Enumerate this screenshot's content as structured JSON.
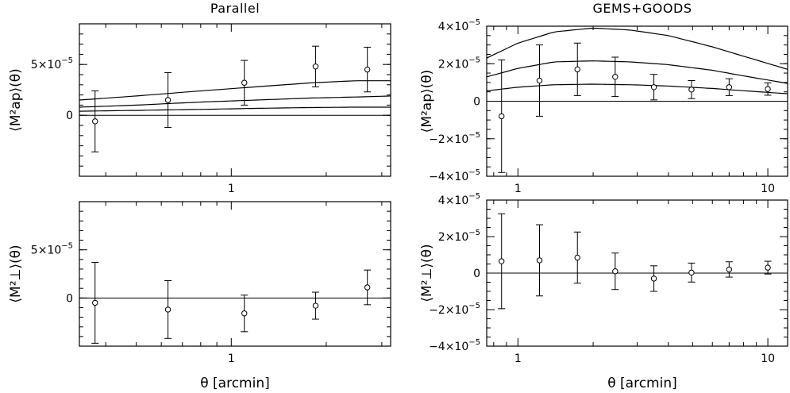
{
  "titles": {
    "left": "Parallel",
    "right": "GEMS+GOODS"
  },
  "xlabel_left": "θ [arcmin]",
  "xlabel_right": "θ [arcmin]",
  "chart_data": [
    {
      "type": "scatter",
      "panel": "parallel-top",
      "title": "Parallel",
      "ylabel": "⟨M²ap⟩(θ)",
      "xlabel": "",
      "xscale": "log",
      "xlim": [
        0.33,
        3.2
      ],
      "ylim": [
        -6e-05,
        9e-05
      ],
      "xticks": [
        {
          "v": 1,
          "label": "1"
        }
      ],
      "yticks": [
        {
          "v": 5e-05,
          "label": "5×10",
          "exp": "−5"
        },
        {
          "v": 0,
          "label": "0"
        }
      ],
      "points": {
        "x": [
          0.37,
          0.63,
          1.1,
          1.85,
          2.7
        ],
        "y": [
          -6e-06,
          1.5e-05,
          3.2e-05,
          4.8e-05,
          4.5e-05
        ],
        "err": [
          3e-05,
          2.7e-05,
          2.2e-05,
          2e-05,
          2.2e-05
        ]
      },
      "curves": [
        {
          "x": [
            0.33,
            0.5,
            0.8,
            1.2,
            1.8,
            2.5,
            3.2
          ],
          "y": [
            1.5e-05,
            1.9e-05,
            2.4e-05,
            2.8e-05,
            3.2e-05,
            3.4e-05,
            3.4e-05
          ]
        },
        {
          "x": [
            0.33,
            0.5,
            0.8,
            1.2,
            1.8,
            2.5,
            3.2
          ],
          "y": [
            8e-06,
            1e-05,
            1.3e-05,
            1.5e-05,
            1.7e-05,
            1.8e-05,
            1.9e-05
          ]
        },
        {
          "x": [
            0.33,
            0.5,
            0.8,
            1.2,
            1.8,
            2.5,
            3.2
          ],
          "y": [
            4e-06,
            4.8e-06,
            5.8e-06,
            6.8e-06,
            7.6e-06,
            8e-06,
            8e-06
          ]
        }
      ]
    },
    {
      "type": "scatter",
      "panel": "parallel-bottom",
      "ylabel": "⟨M²⊥⟩(θ)",
      "xlabel": "θ [arcmin]",
      "xscale": "log",
      "xlim": [
        0.33,
        3.2
      ],
      "ylim": [
        -5e-05,
        0.0001
      ],
      "xticks": [
        {
          "v": 1,
          "label": "1"
        }
      ],
      "yticks": [
        {
          "v": 5e-05,
          "label": "5×10",
          "exp": "−5"
        },
        {
          "v": 0,
          "label": "0"
        }
      ],
      "points": {
        "x": [
          0.37,
          0.63,
          1.1,
          1.85,
          2.7
        ],
        "y": [
          -5e-06,
          -1.2e-05,
          -1.6e-05,
          -8e-06,
          1.1e-05
        ],
        "err": [
          4.2e-05,
          3e-05,
          1.9e-05,
          1.4e-05,
          1.8e-05
        ]
      },
      "curves": []
    },
    {
      "type": "scatter",
      "panel": "gems-top",
      "title": "GEMS+GOODS",
      "ylabel": "⟨M²ap⟩(θ)",
      "xlabel": "",
      "xscale": "log",
      "xlim": [
        0.75,
        12
      ],
      "ylim": [
        -4e-05,
        4e-05
      ],
      "xticks": [
        {
          "v": 1,
          "label": "1"
        },
        {
          "v": 10,
          "label": "10"
        }
      ],
      "yticks": [
        {
          "v": 4e-05,
          "label": "4×10",
          "exp": "−5"
        },
        {
          "v": 2e-05,
          "label": "2×10",
          "exp": "−5"
        },
        {
          "v": 0,
          "label": "0"
        },
        {
          "v": -2e-05,
          "label": "−2×10",
          "exp": "−5"
        },
        {
          "v": -4e-05,
          "label": "−4×10",
          "exp": "−5"
        }
      ],
      "points": {
        "x": [
          0.86,
          1.22,
          1.73,
          2.45,
          3.5,
          4.95,
          7.0,
          10.0
        ],
        "y": [
          -8e-06,
          1.1e-05,
          1.7e-05,
          1.3e-05,
          7.5e-06,
          6.2e-06,
          7.5e-06,
          6.5e-06
        ],
        "err": [
          3e-05,
          1.9e-05,
          1.4e-05,
          1.05e-05,
          6.8e-06,
          4.8e-06,
          4.5e-06,
          3.3e-06
        ]
      },
      "curves": [
        {
          "x": [
            0.75,
            1.0,
            1.4,
            2.0,
            2.8,
            4.0,
            6.0,
            8.0,
            12.0
          ],
          "y": [
            2.3e-05,
            3.1e-05,
            3.7e-05,
            3.9e-05,
            3.8e-05,
            3.5e-05,
            2.9e-05,
            2.4e-05,
            1.7e-05
          ]
        },
        {
          "x": [
            0.75,
            1.0,
            1.4,
            2.0,
            2.8,
            4.0,
            6.0,
            8.0,
            12.0
          ],
          "y": [
            1.3e-05,
            1.75e-05,
            2.1e-05,
            2.15e-05,
            2.1e-05,
            1.95e-05,
            1.65e-05,
            1.35e-05,
            9.5e-06
          ]
        },
        {
          "x": [
            0.75,
            1.0,
            1.4,
            2.0,
            2.8,
            4.0,
            6.0,
            8.0,
            12.0
          ],
          "y": [
            5.5e-06,
            7.5e-06,
            8.8e-06,
            9.1e-06,
            8.8e-06,
            8.1e-06,
            6.8e-06,
            5.6e-06,
            4e-06
          ]
        }
      ]
    },
    {
      "type": "scatter",
      "panel": "gems-bottom",
      "ylabel": "⟨M²⊥⟩(θ)",
      "xlabel": "θ [arcmin]",
      "xscale": "log",
      "xlim": [
        0.75,
        12
      ],
      "ylim": [
        -4e-05,
        4e-05
      ],
      "xticks": [
        {
          "v": 1,
          "label": "1"
        },
        {
          "v": 10,
          "label": "10"
        }
      ],
      "yticks": [
        {
          "v": 4e-05,
          "label": "4×10",
          "exp": "−5"
        },
        {
          "v": 2e-05,
          "label": "2×10",
          "exp": "−5"
        },
        {
          "v": 0,
          "label": "0"
        },
        {
          "v": -2e-05,
          "label": "−2×10",
          "exp": "−5"
        },
        {
          "v": -4e-05,
          "label": "−4×10",
          "exp": "−5"
        }
      ],
      "points": {
        "x": [
          0.86,
          1.22,
          1.73,
          2.45,
          3.5,
          4.95,
          7.0,
          10.0
        ],
        "y": [
          6.5e-06,
          7e-06,
          8.5e-06,
          1e-06,
          -3e-06,
          3e-07,
          2e-06,
          3e-06
        ],
        "err": [
          2.6e-05,
          1.95e-05,
          1.4e-05,
          1e-05,
          7e-06,
          5.2e-06,
          4.2e-06,
          3.5e-06
        ]
      },
      "curves": []
    }
  ]
}
